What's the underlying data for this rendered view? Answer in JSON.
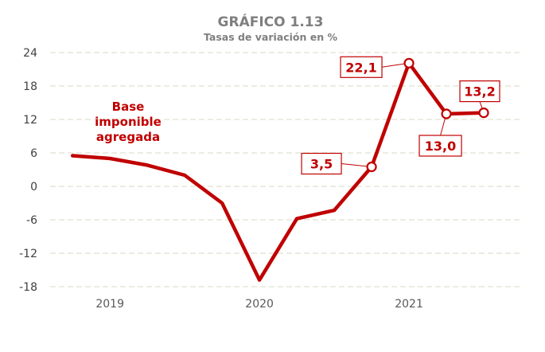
{
  "chart_data": {
    "type": "line",
    "title": "GRÁFICO 1.13",
    "subtitle": "Tasas de variación en %",
    "series": [
      {
        "name": "Base imponible agregada",
        "name_lines": [
          "Base",
          "imponible",
          "agregada"
        ],
        "x": [
          2018.75,
          2019.0,
          2019.25,
          2019.5,
          2019.75,
          2020.0,
          2020.25,
          2020.5,
          2020.75,
          2021.0,
          2021.25,
          2021.5
        ],
        "values": [
          5.5,
          5.0,
          3.8,
          2.0,
          -3.0,
          -16.8,
          -5.8,
          -4.3,
          3.5,
          22.1,
          13.0,
          13.2
        ]
      }
    ],
    "labeled_points": [
      {
        "index": 8,
        "label": "3,5"
      },
      {
        "index": 9,
        "label": "22,1"
      },
      {
        "index": 10,
        "label": "13,0"
      },
      {
        "index": 11,
        "label": "13,2"
      }
    ],
    "yticks": [
      24,
      18,
      12,
      6,
      0,
      -6,
      -12,
      -18
    ],
    "ytick_labels": [
      "24",
      "18",
      "12",
      "6",
      "0",
      "-6",
      "-12",
      "-18"
    ],
    "ylim": [
      -18,
      24
    ],
    "xticks": [
      2019,
      2020,
      2021
    ],
    "xtick_labels": [
      "2019",
      "2020",
      "2021"
    ],
    "xlim": [
      2018.6,
      2021.75
    ],
    "grid": true,
    "color": "#c00000"
  }
}
